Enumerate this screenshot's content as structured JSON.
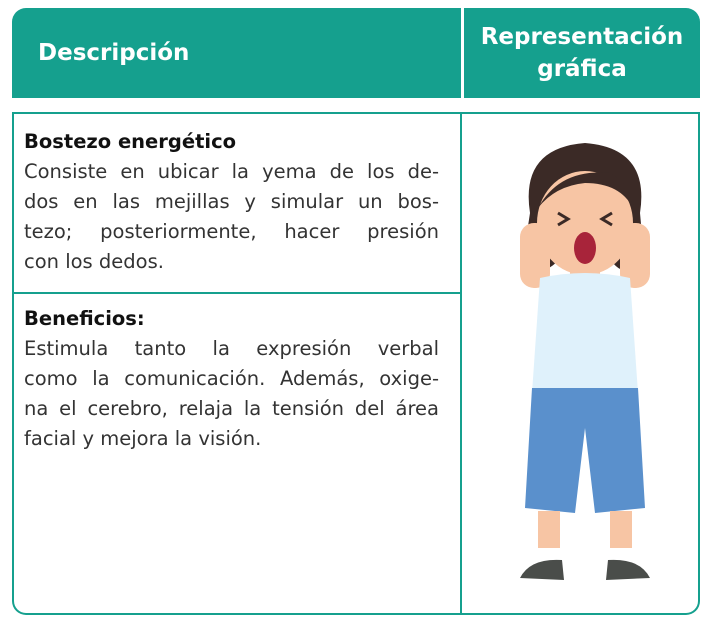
{
  "header": {
    "columns": [
      "Descripción",
      "Representación gráfica"
    ]
  },
  "exercise": {
    "title": "Bostezo energético",
    "lines": [
      "Consiste en ubicar la yema de los de-",
      "dos en las mejillas y simular un bos-",
      "tezo; posteriormente, hacer presión",
      "con los dedos."
    ]
  },
  "benefits": {
    "title": "Beneficios:",
    "lines": [
      "Estimula tanto la expresión verbal",
      "como la comunicación. Además, oxige-",
      "na el cerebro, relaja la tensión del área",
      "facial y mejora la visión."
    ]
  }
}
